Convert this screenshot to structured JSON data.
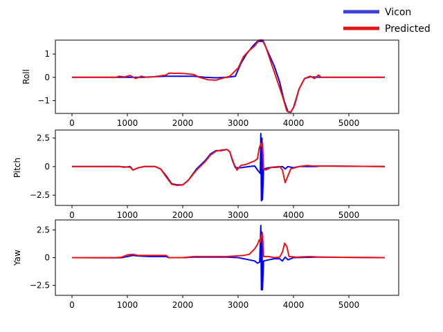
{
  "colors": {
    "vicon": "#0000ff",
    "predicted": "#ee1111",
    "vicon_legend": "#4040d0",
    "predicted_legend": "#e01818"
  },
  "legend": {
    "placement": "top-right, outside",
    "items": [
      {
        "label": "Vicon",
        "color": "#4040d0"
      },
      {
        "label": "Predicted",
        "color": "#e01818"
      }
    ]
  },
  "chart_data": [
    {
      "type": "line",
      "ylabel": "Roll",
      "xlim": [
        -300,
        5900
      ],
      "ylim": [
        -1.55,
        1.6
      ],
      "xticks": [
        0,
        1000,
        2000,
        3000,
        4000,
        5000
      ],
      "yticks": [
        -1,
        0,
        1
      ],
      "grid": false,
      "series": [
        {
          "name": "Vicon",
          "color": "#0000ff",
          "points": [
            [
              0,
              0
            ],
            [
              800,
              0
            ],
            [
              1000,
              0
            ],
            [
              1300,
              0
            ],
            [
              1400,
              0.02
            ],
            [
              1700,
              0.05
            ],
            [
              2000,
              0.05
            ],
            [
              2200,
              0.05
            ],
            [
              2400,
              0
            ],
            [
              2600,
              -0.02
            ],
            [
              2800,
              0
            ],
            [
              2950,
              0.05
            ],
            [
              3050,
              0.6
            ],
            [
              3150,
              1.0
            ],
            [
              3250,
              1.3
            ],
            [
              3350,
              1.55
            ],
            [
              3450,
              1.55
            ],
            [
              3500,
              1.3
            ],
            [
              3650,
              0.5
            ],
            [
              3750,
              -0.2
            ],
            [
              3830,
              -1.0
            ],
            [
              3900,
              -1.48
            ],
            [
              3950,
              -1.5
            ],
            [
              4000,
              -1.3
            ],
            [
              4100,
              -0.5
            ],
            [
              4200,
              -0.05
            ],
            [
              4300,
              0.02
            ],
            [
              4500,
              0
            ],
            [
              5650,
              0
            ]
          ]
        },
        {
          "name": "Predicted",
          "color": "#ee1111",
          "points": [
            [
              0,
              0
            ],
            [
              800,
              0
            ],
            [
              850,
              0.05
            ],
            [
              950,
              0.02
            ],
            [
              1050,
              0.08
            ],
            [
              1150,
              -0.05
            ],
            [
              1250,
              0.05
            ],
            [
              1350,
              0
            ],
            [
              1500,
              0.03
            ],
            [
              1700,
              0.1
            ],
            [
              1750,
              0.18
            ],
            [
              2000,
              0.17
            ],
            [
              2200,
              0.12
            ],
            [
              2300,
              0
            ],
            [
              2450,
              -0.1
            ],
            [
              2600,
              -0.12
            ],
            [
              2700,
              -0.05
            ],
            [
              2850,
              0.05
            ],
            [
              3000,
              0.4
            ],
            [
              3100,
              0.9
            ],
            [
              3200,
              1.15
            ],
            [
              3300,
              1.35
            ],
            [
              3380,
              1.6
            ],
            [
              3450,
              1.6
            ],
            [
              3500,
              1.3
            ],
            [
              3600,
              0.6
            ],
            [
              3700,
              -0.1
            ],
            [
              3800,
              -0.8
            ],
            [
              3880,
              -1.45
            ],
            [
              3950,
              -1.5
            ],
            [
              4020,
              -1.2
            ],
            [
              4100,
              -0.5
            ],
            [
              4200,
              -0.05
            ],
            [
              4300,
              0.05
            ],
            [
              4380,
              -0.05
            ],
            [
              4450,
              0.1
            ],
            [
              4500,
              0
            ],
            [
              5650,
              0
            ]
          ]
        }
      ]
    },
    {
      "type": "line",
      "ylabel": "Pitch",
      "xlim": [
        -300,
        5900
      ],
      "ylim": [
        -3.4,
        3.2
      ],
      "xticks": [
        0,
        1000,
        2000,
        3000,
        4000,
        5000
      ],
      "yticks": [
        -2.5,
        0,
        2.5
      ],
      "grid": false,
      "series": [
        {
          "name": "Vicon",
          "color": "#0000ff",
          "points": [
            [
              0,
              0
            ],
            [
              850,
              0
            ],
            [
              950,
              -0.05
            ],
            [
              1050,
              0
            ],
            [
              1100,
              -0.3
            ],
            [
              1200,
              -0.1
            ],
            [
              1300,
              0
            ],
            [
              1500,
              0
            ],
            [
              1600,
              -0.2
            ],
            [
              1700,
              -0.8
            ],
            [
              1800,
              -1.5
            ],
            [
              1900,
              -1.6
            ],
            [
              2000,
              -1.6
            ],
            [
              2100,
              -1.2
            ],
            [
              2250,
              -0.2
            ],
            [
              2400,
              0.5
            ],
            [
              2500,
              1.1
            ],
            [
              2600,
              1.4
            ],
            [
              2700,
              1.4
            ],
            [
              2800,
              1.5
            ],
            [
              2850,
              1.3
            ],
            [
              2900,
              0.5
            ],
            [
              2950,
              -0.1
            ],
            [
              3050,
              -0.1
            ],
            [
              3200,
              0
            ],
            [
              3300,
              0.05
            ],
            [
              3350,
              -0.3
            ],
            [
              3400,
              -0.6
            ],
            [
              3410,
              2.9
            ],
            [
              3420,
              -3.0
            ],
            [
              3430,
              2.5
            ],
            [
              3440,
              -2.9
            ],
            [
              3460,
              -0.2
            ],
            [
              3550,
              -0.1
            ],
            [
              3700,
              -0.05
            ],
            [
              3800,
              0
            ],
            [
              3850,
              -0.2
            ],
            [
              3900,
              0
            ],
            [
              4000,
              -0.1
            ],
            [
              4100,
              0
            ],
            [
              4400,
              0
            ],
            [
              4500,
              0.05
            ],
            [
              5650,
              0
            ]
          ]
        },
        {
          "name": "Predicted",
          "color": "#ee1111",
          "points": [
            [
              0,
              0
            ],
            [
              850,
              0
            ],
            [
              950,
              -0.02
            ],
            [
              1050,
              -0.05
            ],
            [
              1100,
              -0.3
            ],
            [
              1200,
              -0.1
            ],
            [
              1300,
              0
            ],
            [
              1500,
              0
            ],
            [
              1600,
              -0.2
            ],
            [
              1700,
              -0.9
            ],
            [
              1800,
              -1.55
            ],
            [
              1900,
              -1.65
            ],
            [
              2000,
              -1.6
            ],
            [
              2100,
              -1.2
            ],
            [
              2250,
              -0.3
            ],
            [
              2400,
              0.4
            ],
            [
              2500,
              1.0
            ],
            [
              2600,
              1.35
            ],
            [
              2700,
              1.45
            ],
            [
              2800,
              1.5
            ],
            [
              2850,
              1.3
            ],
            [
              2920,
              0.3
            ],
            [
              2980,
              -0.3
            ],
            [
              3050,
              0.1
            ],
            [
              3150,
              0.2
            ],
            [
              3250,
              0.4
            ],
            [
              3300,
              0.5
            ],
            [
              3350,
              0.7
            ],
            [
              3380,
              1.6
            ],
            [
              3410,
              2.0
            ],
            [
              3420,
              1.8
            ],
            [
              3440,
              2.1
            ],
            [
              3460,
              -0.2
            ],
            [
              3500,
              -0.3
            ],
            [
              3600,
              -0.05
            ],
            [
              3750,
              0
            ],
            [
              3800,
              -0.3
            ],
            [
              3850,
              -1.4
            ],
            [
              3900,
              -0.8
            ],
            [
              3950,
              -0.2
            ],
            [
              4100,
              0
            ],
            [
              4250,
              0.1
            ],
            [
              4350,
              0.05
            ],
            [
              4500,
              0.05
            ],
            [
              5650,
              0
            ]
          ]
        }
      ]
    },
    {
      "type": "line",
      "ylabel": "Yaw",
      "xlim": [
        -300,
        5900
      ],
      "ylim": [
        -3.4,
        3.4
      ],
      "xticks": [
        0,
        1000,
        2000,
        3000,
        4000,
        5000
      ],
      "yticks": [
        -2.5,
        0,
        2.5
      ],
      "grid": false,
      "series": [
        {
          "name": "Vicon",
          "color": "#0000ff",
          "points": [
            [
              0,
              0
            ],
            [
              800,
              -0.02
            ],
            [
              900,
              0
            ],
            [
              1000,
              0.1
            ],
            [
              1100,
              0.2
            ],
            [
              1200,
              0.15
            ],
            [
              1400,
              0.1
            ],
            [
              1700,
              0.1
            ],
            [
              1750,
              0
            ],
            [
              2000,
              0
            ],
            [
              2200,
              0.05
            ],
            [
              2500,
              0.05
            ],
            [
              2800,
              0.05
            ],
            [
              3000,
              0
            ],
            [
              3200,
              -0.2
            ],
            [
              3300,
              -0.3
            ],
            [
              3350,
              -0.5
            ],
            [
              3390,
              -0.4
            ],
            [
              3410,
              2.9
            ],
            [
              3420,
              -2.9
            ],
            [
              3430,
              2.3
            ],
            [
              3440,
              -2.9
            ],
            [
              3460,
              -0.3
            ],
            [
              3550,
              -0.2
            ],
            [
              3650,
              -0.1
            ],
            [
              3750,
              -0.1
            ],
            [
              3800,
              -0.3
            ],
            [
              3850,
              0.05
            ],
            [
              3900,
              -0.2
            ],
            [
              4000,
              0
            ],
            [
              4400,
              0.05
            ],
            [
              4500,
              0.05
            ],
            [
              5650,
              0
            ]
          ]
        },
        {
          "name": "Predicted",
          "color": "#ee1111",
          "points": [
            [
              0,
              0
            ],
            [
              800,
              0
            ],
            [
              900,
              0.05
            ],
            [
              1000,
              0.25
            ],
            [
              1100,
              0.3
            ],
            [
              1200,
              0.2
            ],
            [
              1400,
              0.2
            ],
            [
              1700,
              0.2
            ],
            [
              1750,
              0
            ],
            [
              2000,
              0
            ],
            [
              2200,
              0.1
            ],
            [
              2500,
              0.1
            ],
            [
              2800,
              0.1
            ],
            [
              2950,
              0.15
            ],
            [
              3100,
              0.2
            ],
            [
              3200,
              0.3
            ],
            [
              3300,
              0.8
            ],
            [
              3350,
              1.2
            ],
            [
              3380,
              1.6
            ],
            [
              3400,
              1.4
            ],
            [
              3420,
              2.0
            ],
            [
              3440,
              2.2
            ],
            [
              3460,
              0.1
            ],
            [
              3550,
              0.1
            ],
            [
              3650,
              0
            ],
            [
              3750,
              0.05
            ],
            [
              3800,
              0.5
            ],
            [
              3840,
              1.3
            ],
            [
              3880,
              1.0
            ],
            [
              3920,
              0.1
            ],
            [
              4050,
              0.05
            ],
            [
              4300,
              0.1
            ],
            [
              4500,
              0.05
            ],
            [
              5650,
              0
            ]
          ]
        }
      ]
    }
  ]
}
